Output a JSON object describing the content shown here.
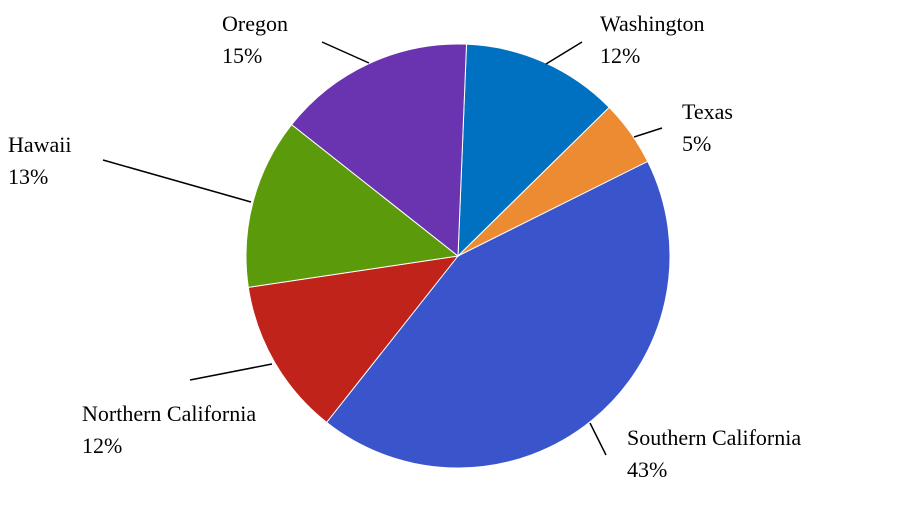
{
  "chart_data": {
    "type": "pie",
    "categories": [
      "Washington",
      "Texas",
      "Southern California",
      "Northern California",
      "Hawaii",
      "Oregon"
    ],
    "values": [
      12,
      5,
      43,
      12,
      13,
      15
    ],
    "value_labels": [
      "12%",
      "5%",
      "43%",
      "12%",
      "13%",
      "15%"
    ],
    "colors": [
      "#0070c0",
      "#ed8b32",
      "#3a55cc",
      "#c0231a",
      "#5b9a0a",
      "#6a33b0"
    ]
  }
}
